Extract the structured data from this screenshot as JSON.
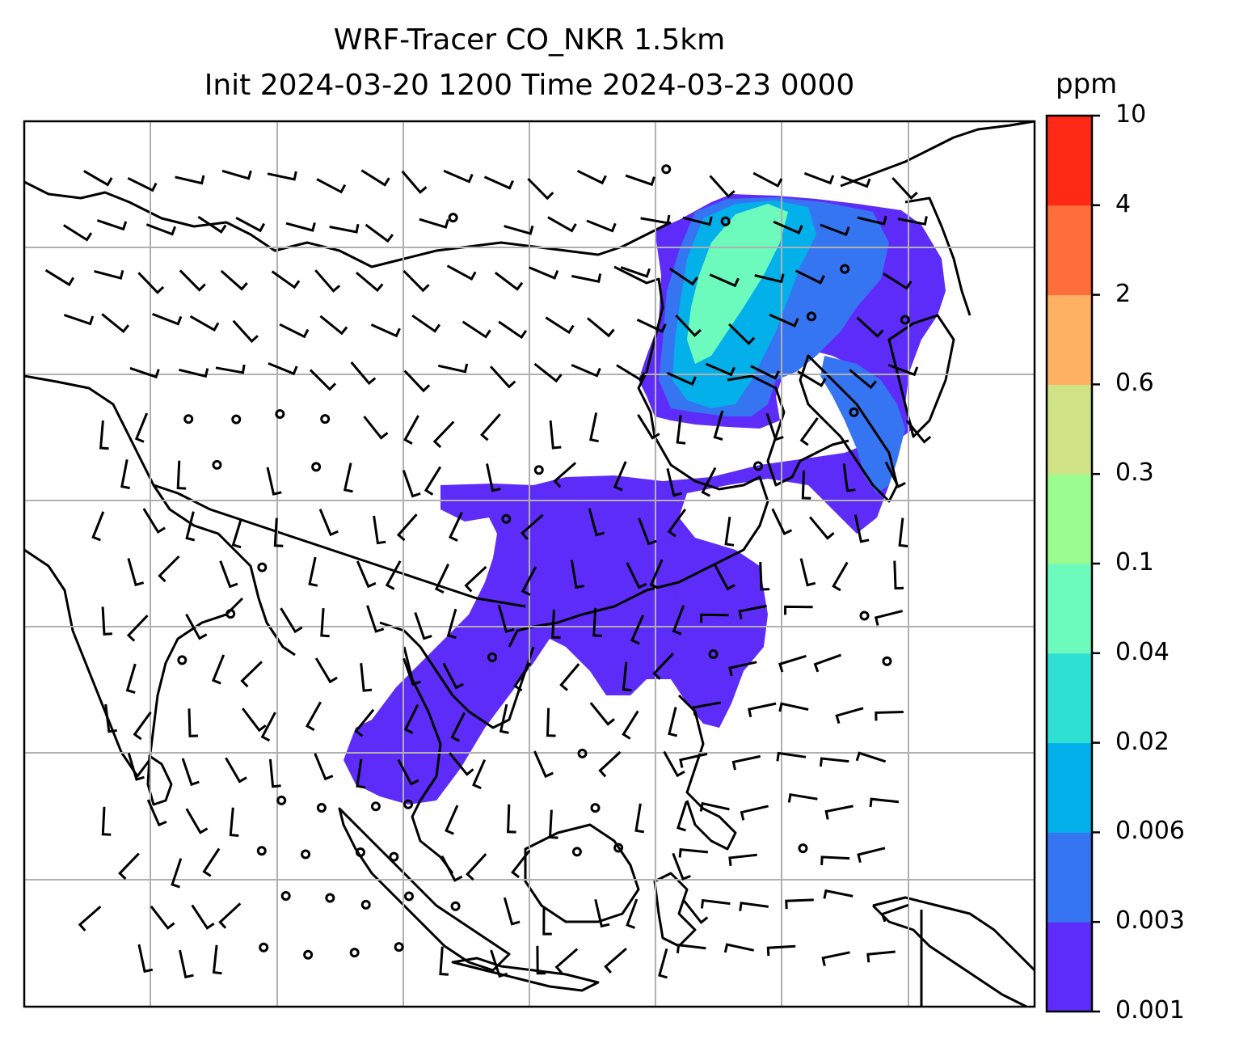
{
  "title": {
    "line1": "WRF-Tracer CO_NKR 1.5km",
    "line2": "Init 2024-03-20 1200 Time 2024-03-23 0000"
  },
  "colorbar": {
    "unit": "ppm",
    "levels": [
      "0.001",
      "0.003",
      "0.006",
      "0.02",
      "0.04",
      "0.1",
      "0.3",
      "0.6",
      "2",
      "4",
      "10"
    ],
    "colors": [
      "#5e2cf8",
      "#3575f2",
      "#03b0ea",
      "#2ee0d4",
      "#6dfbbd",
      "#9afb8f",
      "#cfe286",
      "#feb162",
      "#fd6e3b",
      "#fe2a16"
    ]
  },
  "map": {
    "gridlines": true,
    "land_outline_color": "#000000",
    "grid_color": "#b0b0b0",
    "wind_symbol": "wind-barb-icon",
    "calm_symbol": "calm-circle-icon"
  }
}
